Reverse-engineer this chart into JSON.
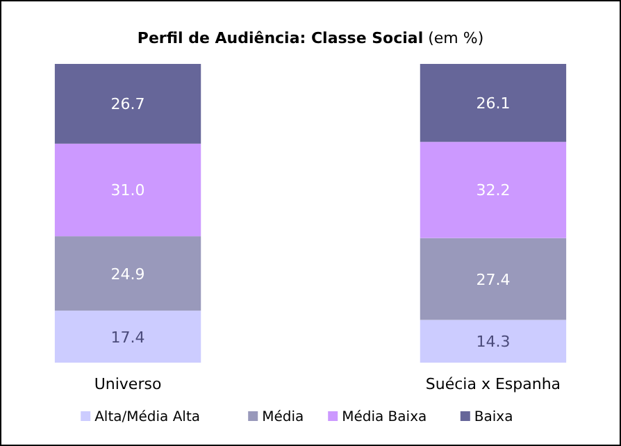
{
  "chart_data": {
    "type": "bar",
    "title": "Perfil de Audiência: Classe Social",
    "subtitle": "(em %)",
    "categories": [
      "Universo",
      "Suécia x Espanha"
    ],
    "stacked": true,
    "legend": "bottom",
    "series": [
      {
        "name": "Alta/Média Alta",
        "color": "#ccccff",
        "values": [
          17.4,
          14.3
        ],
        "value_labels": [
          "17.4",
          "14.3"
        ]
      },
      {
        "name": "Média",
        "color": "#9999bb",
        "values": [
          24.9,
          27.4
        ],
        "value_labels": [
          "24.9",
          "27.4"
        ]
      },
      {
        "name": "Média Baixa",
        "color": "#cc99ff",
        "values": [
          31.0,
          32.2
        ],
        "value_labels": [
          "31.0",
          "32.2"
        ]
      },
      {
        "name": "Baixa",
        "color": "#666699",
        "values": [
          26.7,
          26.1
        ],
        "value_labels": [
          "26.7",
          "26.1"
        ]
      }
    ]
  }
}
